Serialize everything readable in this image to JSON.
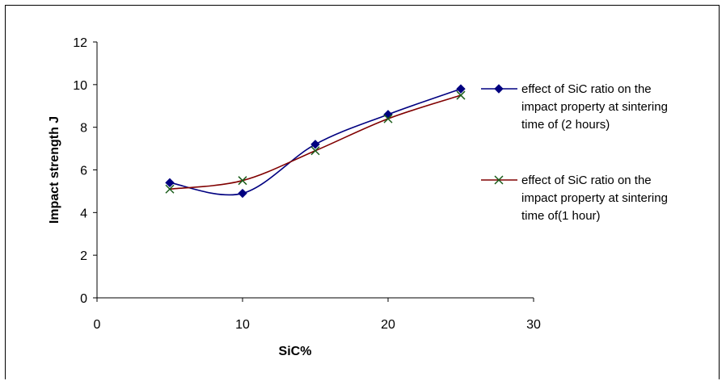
{
  "chart_data": {
    "type": "line",
    "title": "",
    "xlabel": "SiC%",
    "ylabel": "Impact strength J",
    "xlim": [
      0,
      30
    ],
    "ylim": [
      0,
      12
    ],
    "xticks": [
      0,
      10,
      20,
      30
    ],
    "yticks": [
      0,
      2,
      4,
      6,
      8,
      10,
      12
    ],
    "grid": false,
    "legend_position": "right",
    "series": [
      {
        "name": "effect of SiC ratio on the impact property  at sintering time of (2 hours)",
        "legend_lines": [
          "effect of SiC ratio on the",
          "impact property  at sintering",
          "time of (2 hours)"
        ],
        "marker": "diamond",
        "color": "#000080",
        "x": [
          5,
          10,
          15,
          20,
          25
        ],
        "y": [
          5.4,
          4.9,
          7.2,
          8.6,
          9.8
        ]
      },
      {
        "name": "effect of SiC ratio on the impact property at sintering time of(1 hour)",
        "legend_lines": [
          "effect of SiC ratio on the",
          "impact property at sintering",
          "time of(1 hour)"
        ],
        "marker": "x",
        "color": "#800000",
        "marker_color": "#1a5c1a",
        "x": [
          5,
          10,
          15,
          20,
          25
        ],
        "y": [
          5.1,
          5.5,
          6.9,
          8.4,
          9.5
        ]
      }
    ]
  }
}
